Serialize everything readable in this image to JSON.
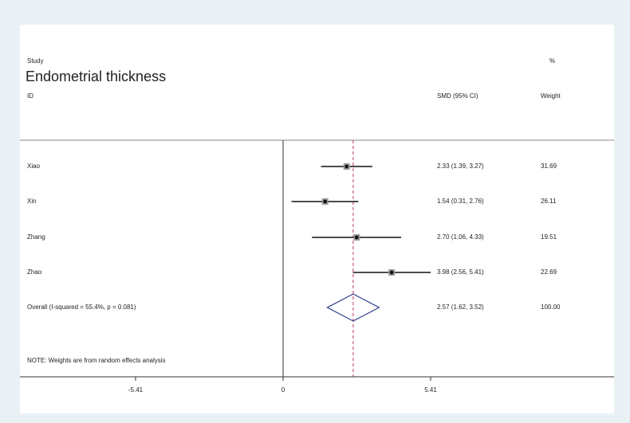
{
  "header": {
    "study_label": "Study",
    "title": "Endometrial thickness",
    "id_label": "ID",
    "ci_label": "SMD (95% CI)",
    "pct_label": "%",
    "weight_label": "Weight"
  },
  "note": "NOTE: Weights are from random effects analysis",
  "colors": {
    "overall_line": "#c0395a",
    "diamond": "#2b3a8c",
    "axis": "#333333"
  },
  "chart_data": {
    "type": "forest",
    "measure": "SMD (95% CI)",
    "studies": [
      {
        "id": "Xiao",
        "smd": 2.33,
        "lower": 1.39,
        "upper": 3.27,
        "ci_text": "2.33 (1.39, 3.27)",
        "weight": "31.69"
      },
      {
        "id": "Xin",
        "smd": 1.54,
        "lower": 0.31,
        "upper": 2.76,
        "ci_text": "1.54 (0.31, 2.76)",
        "weight": "26.11"
      },
      {
        "id": "Zhang",
        "smd": 2.7,
        "lower": 1.06,
        "upper": 4.33,
        "ci_text": "2.70 (1.06, 4.33)",
        "weight": "19.51"
      },
      {
        "id": "Zhao",
        "smd": 3.98,
        "lower": 2.56,
        "upper": 5.41,
        "ci_text": "3.98 (2.56, 5.41)",
        "weight": "22.69"
      }
    ],
    "overall": {
      "label": "Overall  (I-squared = 55.4%, p = 0.081)",
      "smd": 2.57,
      "lower": 1.62,
      "upper": 3.52,
      "ci_text": "2.57 (1.62, 3.52)",
      "weight": "100.00"
    },
    "x_ticks": [
      {
        "value": -5.41,
        "label": "-5.41"
      },
      {
        "value": 0,
        "label": "0"
      },
      {
        "value": 5.41,
        "label": "5.41"
      }
    ],
    "xlim": [
      -9.6,
      9.6
    ]
  }
}
